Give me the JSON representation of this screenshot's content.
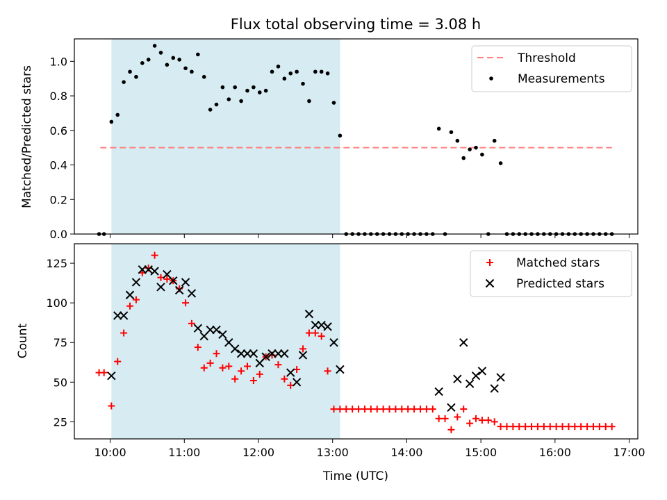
{
  "figure": {
    "title": "Flux total observing time = 3.08 h",
    "xlabel": "Time (UTC)"
  },
  "chart_data": [
    {
      "type": "scatter",
      "panel": "top",
      "ylabel": "Matched/Predicted stars",
      "xlim": [
        "09:31",
        "17:07"
      ],
      "ylim": [
        0,
        1.13
      ],
      "yticks": [
        "0.0",
        "0.2",
        "0.4",
        "0.6",
        "0.8",
        "1.0"
      ],
      "shaded_span": [
        "10:01",
        "13:06"
      ],
      "shade_color": "#add8e6",
      "legend_position": "upper right",
      "series": [
        {
          "name": "Threshold",
          "kind": "dashed-line",
          "color": "#ff8080",
          "x": [
            "09:52",
            "16:46"
          ],
          "y": [
            0.5,
            0.5
          ]
        },
        {
          "name": "Measurements",
          "kind": "dots",
          "color": "#000000",
          "x": [
            "09:51",
            "09:55",
            "10:01",
            "10:06",
            "10:11",
            "10:16",
            "10:21",
            "10:26",
            "10:31",
            "10:36",
            "10:41",
            "10:46",
            "10:51",
            "10:56",
            "11:01",
            "11:06",
            "11:11",
            "11:16",
            "11:21",
            "11:26",
            "11:31",
            "11:36",
            "11:41",
            "11:46",
            "11:51",
            "11:56",
            "12:01",
            "12:06",
            "12:11",
            "12:16",
            "12:21",
            "12:26",
            "12:31",
            "12:36",
            "12:41",
            "12:46",
            "12:51",
            "12:56",
            "13:01",
            "13:06",
            "13:11",
            "13:16",
            "13:21",
            "13:26",
            "13:31",
            "13:36",
            "13:41",
            "13:46",
            "13:51",
            "13:56",
            "14:01",
            "14:06",
            "14:11",
            "14:16",
            "14:21",
            "14:26",
            "14:31",
            "14:36",
            "14:41",
            "14:46",
            "14:51",
            "14:56",
            "15:01",
            "15:06",
            "15:11",
            "15:16",
            "15:21",
            "15:26",
            "15:31",
            "15:36",
            "15:41",
            "15:46",
            "15:51",
            "15:56",
            "16:01",
            "16:06",
            "16:11",
            "16:16",
            "16:21",
            "16:26",
            "16:31",
            "16:36",
            "16:41",
            "16:46"
          ],
          "y": [
            0.0,
            0.0,
            0.65,
            0.69,
            0.88,
            0.94,
            0.91,
            0.99,
            1.01,
            1.09,
            1.05,
            0.98,
            1.02,
            1.01,
            0.96,
            0.94,
            1.04,
            0.91,
            0.72,
            0.75,
            0.85,
            0.78,
            0.85,
            0.77,
            0.83,
            0.85,
            0.82,
            0.83,
            0.94,
            0.97,
            0.9,
            0.93,
            0.94,
            0.87,
            0.77,
            0.94,
            0.94,
            0.93,
            0.76,
            0.57,
            0.0,
            0.0,
            0.0,
            0.0,
            0.0,
            0.0,
            0.0,
            0.0,
            0.0,
            0.0,
            0.0,
            0.0,
            0.0,
            0.0,
            0.0,
            0.61,
            0.0,
            0.59,
            0.54,
            0.44,
            0.49,
            0.5,
            0.46,
            0.0,
            0.54,
            0.41,
            0.0,
            0.0,
            0.0,
            0.0,
            0.0,
            0.0,
            0.0,
            0.0,
            0.0,
            0.0,
            0.0,
            0.0,
            0.0,
            0.0,
            0.0,
            0.0,
            0.0,
            0.0
          ]
        }
      ]
    },
    {
      "type": "scatter",
      "panel": "bottom",
      "ylabel": "Count",
      "xlabel": "Time (UTC)",
      "xlim": [
        "09:31",
        "17:07"
      ],
      "ylim": [
        14.2,
        137.3
      ],
      "yticks": [
        "25",
        "50",
        "75",
        "100",
        "125"
      ],
      "xticks": [
        "10:00",
        "11:00",
        "12:00",
        "13:00",
        "14:00",
        "15:00",
        "16:00",
        "17:00"
      ],
      "shaded_span": [
        "10:01",
        "13:06"
      ],
      "shade_color": "#add8e6",
      "legend_position": "upper right",
      "series": [
        {
          "name": "Matched stars",
          "kind": "plus",
          "color": "#ff0000",
          "x": [
            "09:51",
            "09:55",
            "10:01",
            "10:06",
            "10:11",
            "10:16",
            "10:21",
            "10:26",
            "10:31",
            "10:36",
            "10:41",
            "10:46",
            "10:51",
            "10:56",
            "11:01",
            "11:06",
            "11:11",
            "11:16",
            "11:21",
            "11:26",
            "11:31",
            "11:36",
            "11:41",
            "11:46",
            "11:51",
            "11:56",
            "12:01",
            "12:06",
            "12:11",
            "12:16",
            "12:21",
            "12:26",
            "12:31",
            "12:36",
            "12:41",
            "12:46",
            "12:51",
            "12:56",
            "13:01",
            "13:06",
            "13:11",
            "13:16",
            "13:21",
            "13:26",
            "13:31",
            "13:36",
            "13:41",
            "13:46",
            "13:51",
            "13:56",
            "14:01",
            "14:06",
            "14:11",
            "14:16",
            "14:21",
            "14:26",
            "14:31",
            "14:36",
            "14:41",
            "14:46",
            "14:51",
            "14:56",
            "15:01",
            "15:06",
            "15:11",
            "15:16",
            "15:21",
            "15:26",
            "15:31",
            "15:36",
            "15:41",
            "15:46",
            "15:51",
            "15:56",
            "16:01",
            "16:06",
            "16:11",
            "16:16",
            "16:21",
            "16:26",
            "16:31",
            "16:36",
            "16:41",
            "16:46"
          ],
          "y": [
            56,
            56,
            35,
            63,
            81,
            98,
            102,
            119,
            122,
            130,
            116,
            115,
            114,
            109,
            100,
            87,
            72,
            59,
            62,
            68,
            59,
            60,
            52,
            57,
            60,
            51,
            55,
            66,
            67,
            61,
            52,
            48,
            58,
            71,
            81,
            81,
            79,
            57,
            33,
            33,
            33,
            33,
            33,
            33,
            33,
            33,
            33,
            33,
            33,
            33,
            33,
            33,
            33,
            33,
            33,
            27,
            27,
            20,
            28,
            33,
            24,
            27,
            26,
            26,
            25,
            22,
            22,
            22,
            22,
            22,
            22,
            22,
            22,
            22,
            22,
            22,
            22,
            22,
            22,
            22,
            22,
            22,
            22,
            22
          ]
        },
        {
          "name": "Predicted stars",
          "kind": "x",
          "color": "#000000",
          "x": [
            "10:01",
            "10:06",
            "10:11",
            "10:16",
            "10:21",
            "10:26",
            "10:31",
            "10:36",
            "10:41",
            "10:46",
            "10:51",
            "10:56",
            "11:01",
            "11:06",
            "11:11",
            "11:16",
            "11:21",
            "11:26",
            "11:31",
            "11:36",
            "11:41",
            "11:46",
            "11:51",
            "11:56",
            "12:01",
            "12:06",
            "12:11",
            "12:16",
            "12:21",
            "12:26",
            "12:31",
            "12:36",
            "12:41",
            "12:46",
            "12:51",
            "12:56",
            "13:01",
            "13:06",
            "14:26",
            "14:36",
            "14:41",
            "14:46",
            "14:51",
            "14:56",
            "15:01",
            "15:11",
            "15:16"
          ],
          "y": [
            54,
            92,
            92,
            105,
            113,
            121,
            121,
            120,
            110,
            118,
            114,
            108,
            113,
            106,
            84,
            79,
            83,
            83,
            80,
            75,
            71,
            68,
            68,
            68,
            62,
            66,
            68,
            68,
            68,
            56,
            50,
            67,
            93,
            86,
            86,
            85,
            75,
            58,
            44,
            34,
            52,
            75,
            49,
            54,
            57,
            46,
            53
          ]
        }
      ]
    }
  ]
}
